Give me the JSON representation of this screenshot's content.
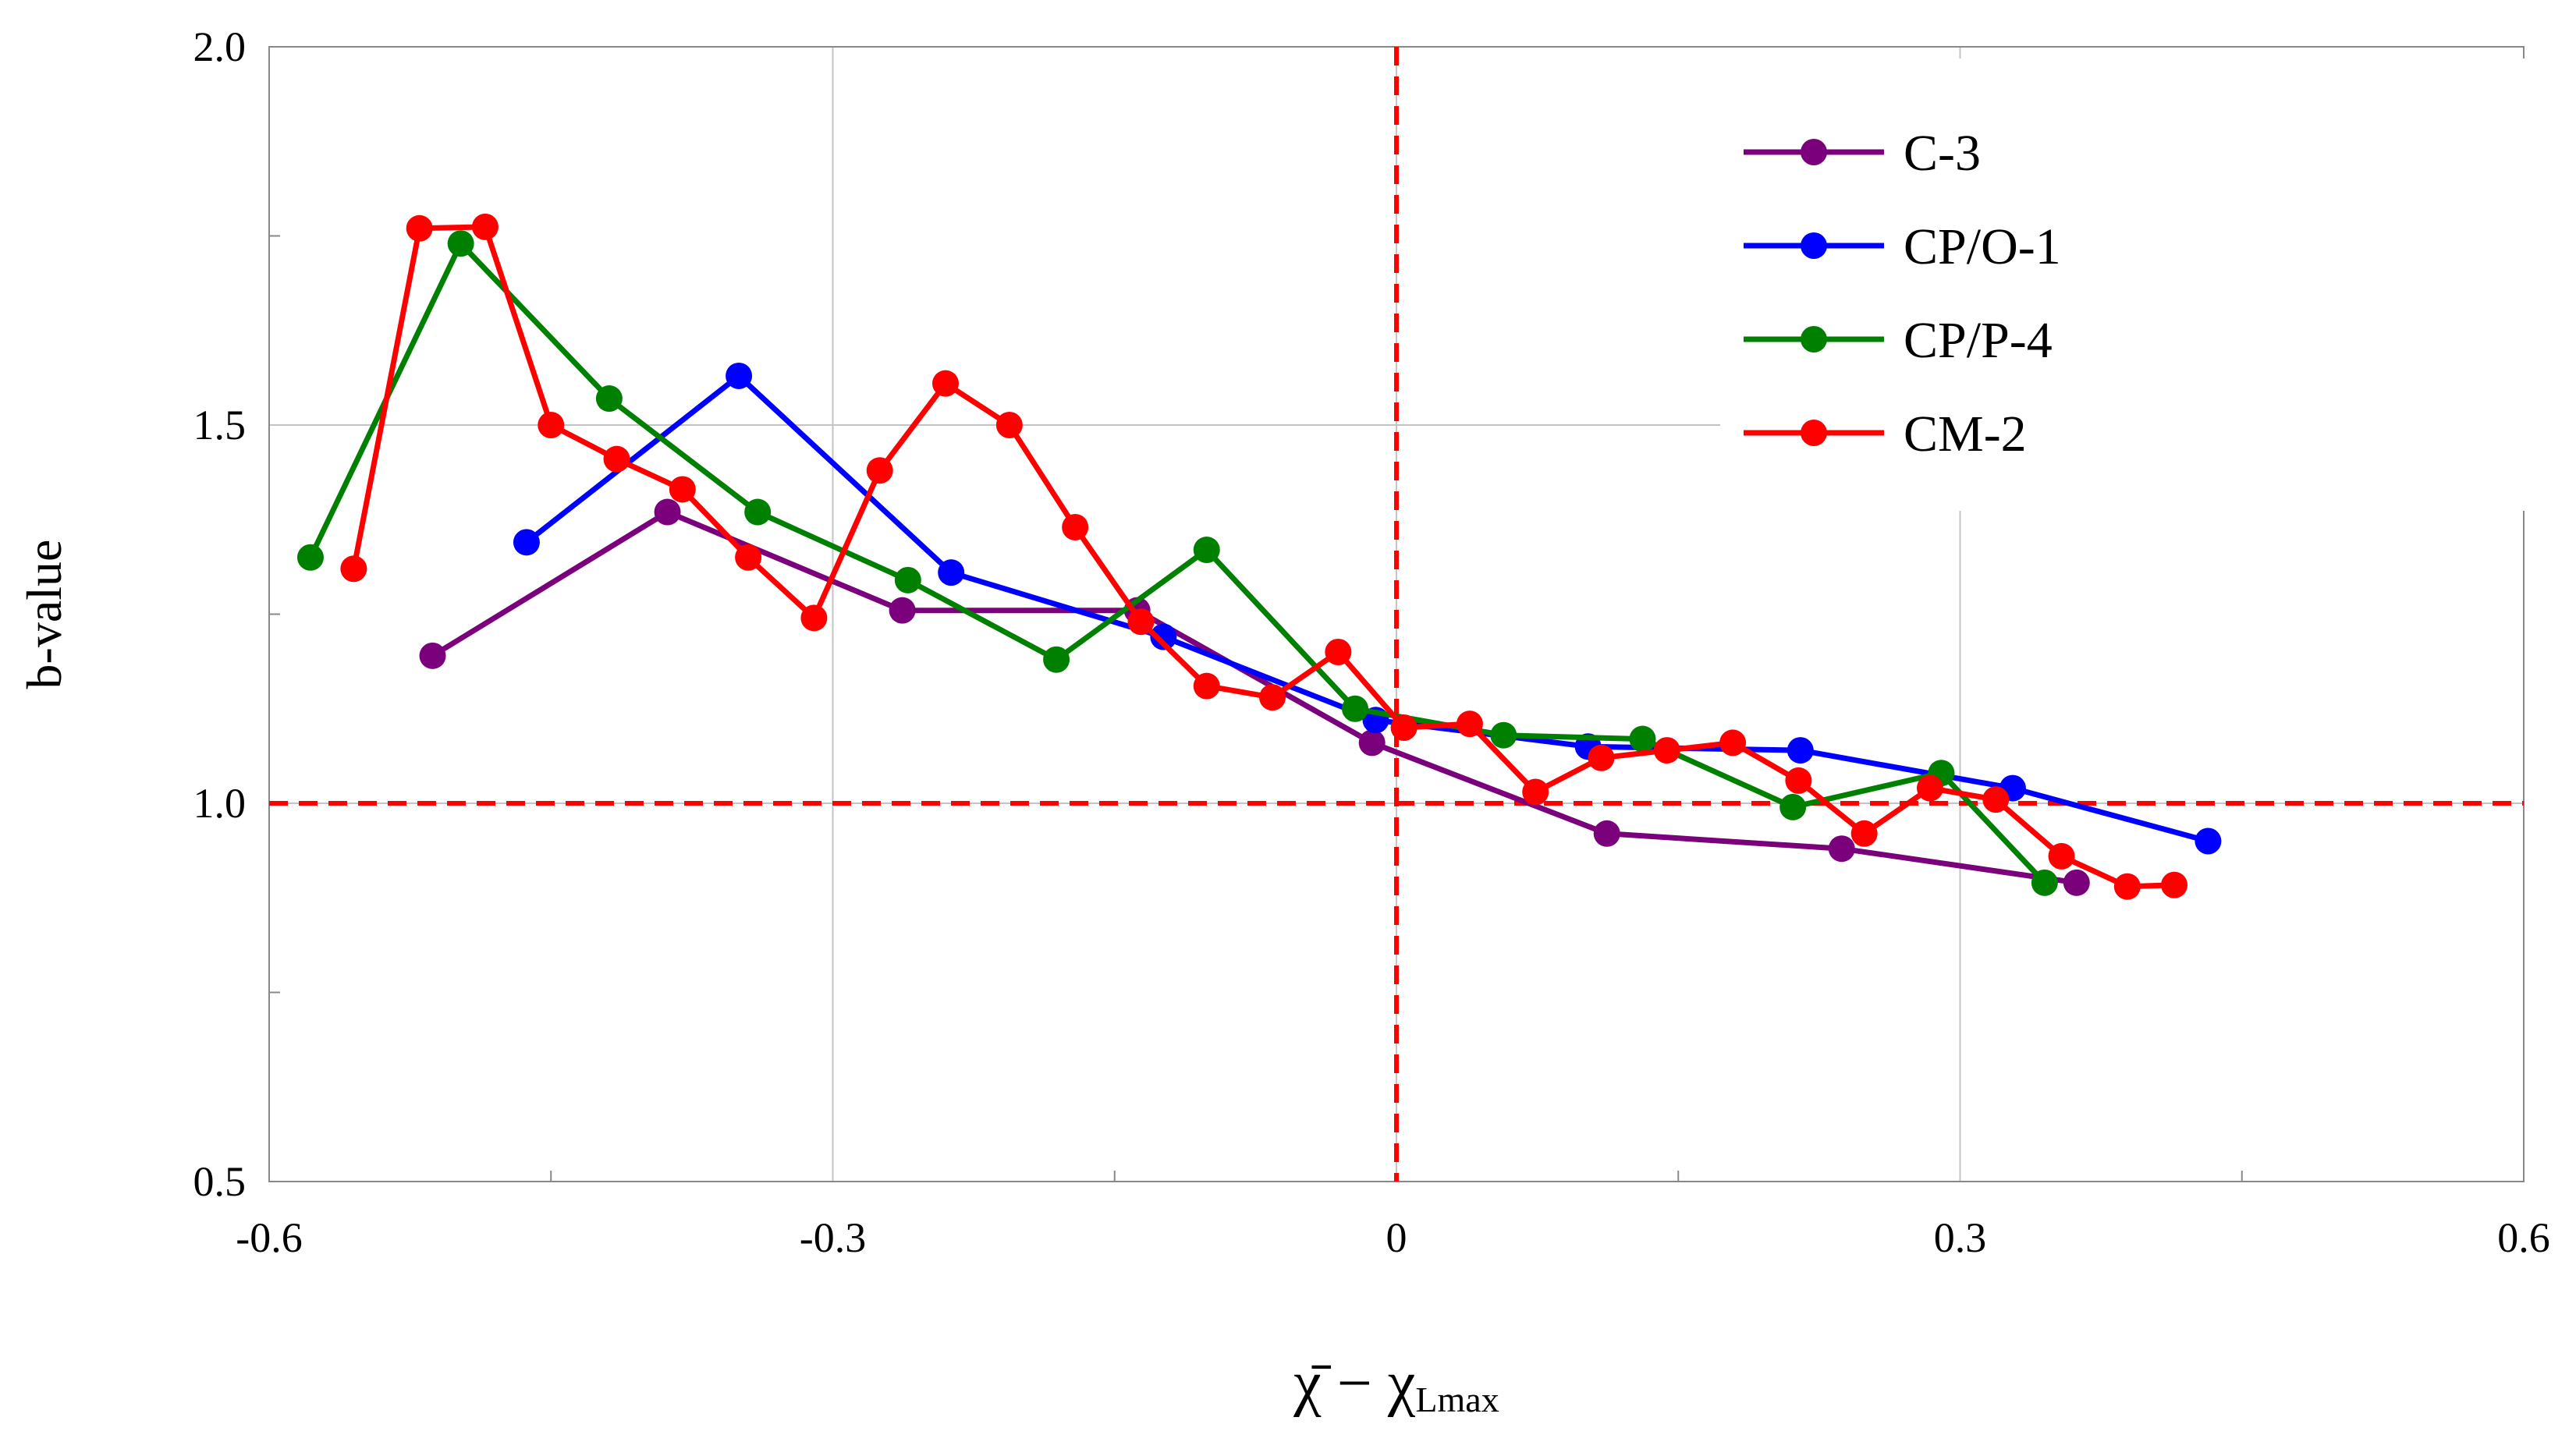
{
  "chart_data": {
    "type": "line",
    "title": "",
    "xlabel": {
      "main": "χ̄ − χ",
      "subscript": "Lmax"
    },
    "ylabel": "b-value",
    "xlim": [
      -0.6,
      0.6
    ],
    "ylim": [
      0.5,
      2.0
    ],
    "xticks": [
      -0.6,
      -0.3,
      0,
      0.3,
      0.6
    ],
    "xtick_labels": [
      "-0.6",
      "-0.3",
      "0",
      "0.3",
      "0.6"
    ],
    "yticks": [
      0.5,
      1.0,
      1.5,
      2.0
    ],
    "ytick_labels": [
      "0.5",
      "1.0",
      "1.5",
      "2.0"
    ],
    "grid": true,
    "legend_position": "top-right",
    "reference_lines": [
      {
        "orientation": "vertical",
        "value": 0,
        "color": "#ff0000",
        "style": "dashed"
      },
      {
        "orientation": "horizontal",
        "value": 1.0,
        "color": "#ff0000",
        "style": "dashed"
      }
    ],
    "series": [
      {
        "name": "C-3",
        "color": "#7b007b",
        "points": [
          [
            -0.513,
            1.195
          ],
          [
            -0.388,
            1.385
          ],
          [
            -0.263,
            1.255
          ],
          [
            -0.138,
            1.255
          ],
          [
            -0.013,
            1.08
          ],
          [
            0.112,
            0.96
          ],
          [
            0.237,
            0.94
          ],
          [
            0.362,
            0.895
          ]
        ]
      },
      {
        "name": "CP/O-1",
        "color": "#0000ff",
        "points": [
          [
            -0.463,
            1.345
          ],
          [
            -0.35,
            1.565
          ],
          [
            -0.237,
            1.305
          ],
          [
            -0.124,
            1.22
          ],
          [
            -0.011,
            1.11
          ],
          [
            0.102,
            1.075
          ],
          [
            0.215,
            1.07
          ],
          [
            0.328,
            1.02
          ],
          [
            0.432,
            0.95
          ]
        ]
      },
      {
        "name": "CP/P-4",
        "color": "#008000",
        "points": [
          [
            -0.578,
            1.325
          ],
          [
            -0.498,
            1.74
          ],
          [
            -0.419,
            1.535
          ],
          [
            -0.34,
            1.385
          ],
          [
            -0.26,
            1.295
          ],
          [
            -0.181,
            1.19
          ],
          [
            -0.101,
            1.335
          ],
          [
            -0.022,
            1.125
          ],
          [
            0.057,
            1.09
          ],
          [
            0.131,
            1.085
          ],
          [
            0.211,
            0.995
          ],
          [
            0.29,
            1.04
          ],
          [
            0.345,
            0.895
          ]
        ]
      },
      {
        "name": "CM-2",
        "color": "#ff0000",
        "points": [
          [
            -0.555,
            1.31
          ],
          [
            -0.52,
            1.76
          ],
          [
            -0.485,
            1.762
          ],
          [
            -0.45,
            1.5
          ],
          [
            -0.415,
            1.455
          ],
          [
            -0.38,
            1.415
          ],
          [
            -0.345,
            1.325
          ],
          [
            -0.31,
            1.245
          ],
          [
            -0.275,
            1.44
          ],
          [
            -0.24,
            1.555
          ],
          [
            -0.206,
            1.5
          ],
          [
            -0.171,
            1.365
          ],
          [
            -0.136,
            1.24
          ],
          [
            -0.101,
            1.155
          ],
          [
            -0.066,
            1.14
          ],
          [
            -0.031,
            1.2
          ],
          [
            0.004,
            1.1
          ],
          [
            0.039,
            1.105
          ],
          [
            0.074,
            1.015
          ],
          [
            0.109,
            1.06
          ],
          [
            0.144,
            1.07
          ],
          [
            0.179,
            1.08
          ],
          [
            0.214,
            1.03
          ],
          [
            0.249,
            0.96
          ],
          [
            0.284,
            1.02
          ],
          [
            0.319,
            1.005
          ],
          [
            0.354,
            0.93
          ],
          [
            0.389,
            0.89
          ],
          [
            0.414,
            0.892
          ]
        ]
      }
    ]
  }
}
